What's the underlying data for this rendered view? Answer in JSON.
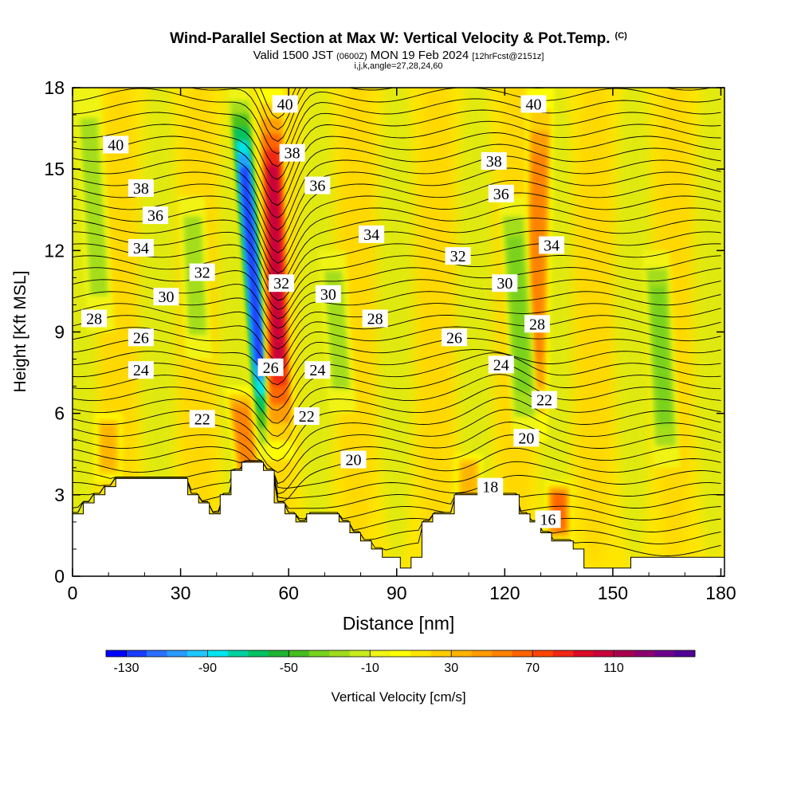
{
  "title": {
    "main": "Wind-Parallel Section at Max W: Vertical Velocity & Pot.Temp.",
    "copyright": "(C)",
    "valid_a": "Valid 1500 JST",
    "valid_b": "(0600Z)",
    "valid_c": "MON 19 Feb 2024",
    "valid_d": "[12hrFcst@2151z]",
    "params": "i,j,k,angle=27,28,24,60"
  },
  "chart_data": {
    "type": "heatmap",
    "xlabel": "Distance [nm]",
    "ylabel": "Height [Kft MSL]",
    "xlim": [
      0,
      181
    ],
    "ylim": [
      0,
      18
    ],
    "x_ticks": [
      0,
      30,
      60,
      90,
      120,
      150,
      180
    ],
    "y_ticks": [
      0,
      3,
      6,
      9,
      12,
      15,
      18
    ],
    "colorbar": {
      "label": "Vertical Velocity [cm/s]",
      "min": -140,
      "max": 150,
      "step": 10,
      "tick_labels": [
        -130,
        -90,
        -50,
        -10,
        30,
        70,
        110
      ],
      "colors": [
        "#0000ff",
        "#1a3cff",
        "#2870ff",
        "#289bff",
        "#1ec8ff",
        "#00e6f0",
        "#00d2a0",
        "#00c364",
        "#1eb432",
        "#46be1e",
        "#78d21e",
        "#a0dc1e",
        "#c8ec1e",
        "#f0f514",
        "#ffff00",
        "#ffe600",
        "#ffcd00",
        "#ffb400",
        "#ff9b00",
        "#ff8200",
        "#ff6400",
        "#ff4600",
        "#f02814",
        "#dc0a28",
        "#c8003c",
        "#aa0050",
        "#8c006e",
        "#6e008c",
        "#500096"
      ]
    },
    "theta_contour_labels": [
      {
        "x": 12,
        "y": 15.9,
        "value": "40"
      },
      {
        "x": 19,
        "y": 14.3,
        "value": "38"
      },
      {
        "x": 23,
        "y": 13.3,
        "value": "36"
      },
      {
        "x": 19,
        "y": 12.1,
        "value": "34"
      },
      {
        "x": 36,
        "y": 11.2,
        "value": "32"
      },
      {
        "x": 26,
        "y": 10.3,
        "value": "30"
      },
      {
        "x": 6,
        "y": 9.5,
        "value": "28"
      },
      {
        "x": 19,
        "y": 8.8,
        "value": "26"
      },
      {
        "x": 19,
        "y": 7.6,
        "value": "24"
      },
      {
        "x": 36,
        "y": 5.8,
        "value": "22"
      },
      {
        "x": 59,
        "y": 17.4,
        "value": "40"
      },
      {
        "x": 61,
        "y": 15.6,
        "value": "38"
      },
      {
        "x": 68,
        "y": 14.4,
        "value": "36"
      },
      {
        "x": 83,
        "y": 12.6,
        "value": "34"
      },
      {
        "x": 58,
        "y": 10.8,
        "value": "32"
      },
      {
        "x": 71,
        "y": 10.4,
        "value": "30"
      },
      {
        "x": 84,
        "y": 9.5,
        "value": "28"
      },
      {
        "x": 55,
        "y": 7.7,
        "value": "26"
      },
      {
        "x": 68,
        "y": 7.6,
        "value": "24"
      },
      {
        "x": 65,
        "y": 5.9,
        "value": "22"
      },
      {
        "x": 78,
        "y": 4.3,
        "value": "20"
      },
      {
        "x": 117,
        "y": 15.3,
        "value": "38"
      },
      {
        "x": 119,
        "y": 14.1,
        "value": "36"
      },
      {
        "x": 133,
        "y": 12.2,
        "value": "34"
      },
      {
        "x": 107,
        "y": 11.8,
        "value": "32"
      },
      {
        "x": 120,
        "y": 10.8,
        "value": "30"
      },
      {
        "x": 129,
        "y": 9.3,
        "value": "28"
      },
      {
        "x": 106,
        "y": 8.8,
        "value": "26"
      },
      {
        "x": 119,
        "y": 7.8,
        "value": "24"
      },
      {
        "x": 131,
        "y": 6.5,
        "value": "22"
      },
      {
        "x": 126,
        "y": 5.1,
        "value": "20"
      },
      {
        "x": 116,
        "y": 3.3,
        "value": "18"
      },
      {
        "x": 132,
        "y": 2.1,
        "value": "16"
      },
      {
        "x": 128,
        "y": 17.4,
        "value": "40"
      }
    ],
    "velocity_features": [
      {
        "name": "downdraft",
        "x_bottom": 54,
        "x_top": 46,
        "y_bottom": 4.3,
        "y_top": 18,
        "min_w": -130
      },
      {
        "name": "updraft",
        "x_bottom": 58,
        "x_top": 55,
        "y_bottom": 4.3,
        "y_top": 18,
        "max_w": 110
      },
      {
        "name": "updraft",
        "x_bottom": 50,
        "x_top": 46,
        "y_bottom": 2.5,
        "y_top": 7,
        "max_w": 60
      },
      {
        "name": "updraft",
        "x_bottom": 128,
        "x_top": 130,
        "y_bottom": 5,
        "y_top": 18,
        "max_w": 60
      },
      {
        "name": "updraft",
        "x_bottom": 135,
        "x_top": 135,
        "y_bottom": 1.2,
        "y_top": 3.5,
        "max_w": 70
      },
      {
        "name": "updraft",
        "x_bottom": 110,
        "x_top": 110,
        "y_bottom": 2.5,
        "y_top": 4.5,
        "max_w": 40
      },
      {
        "name": "updraft",
        "x_bottom": 10,
        "x_top": 10,
        "y_bottom": 3.5,
        "y_top": 6,
        "max_w": 40
      },
      {
        "name": "downdraft",
        "x_bottom": 165,
        "x_top": 162,
        "y_bottom": 4,
        "y_top": 12,
        "min_w": -40
      },
      {
        "name": "downdraft",
        "x_bottom": 126,
        "x_top": 122,
        "y_bottom": 5,
        "y_top": 14,
        "min_w": -35
      },
      {
        "name": "downdraft",
        "x_bottom": 8,
        "x_top": 4,
        "y_bottom": 9,
        "y_top": 18,
        "min_w": -30
      },
      {
        "name": "downdraft",
        "x_bottom": 75,
        "x_top": 72,
        "y_bottom": 6,
        "y_top": 12,
        "min_w": -25
      },
      {
        "name": "downdraft",
        "x_bottom": 35,
        "x_top": 33,
        "y_bottom": 8,
        "y_top": 14,
        "min_w": -25
      }
    ],
    "terrain": [
      [
        0,
        2.3
      ],
      [
        3,
        2.3
      ],
      [
        3,
        2.7
      ],
      [
        6,
        2.7
      ],
      [
        6,
        3.0
      ],
      [
        9,
        3.0
      ],
      [
        9,
        3.3
      ],
      [
        12,
        3.3
      ],
      [
        12,
        3.6
      ],
      [
        32,
        3.6
      ],
      [
        32,
        3.0
      ],
      [
        35,
        3.0
      ],
      [
        35,
        2.7
      ],
      [
        38,
        2.7
      ],
      [
        38,
        2.3
      ],
      [
        41,
        2.3
      ],
      [
        41,
        3.0
      ],
      [
        44,
        3.0
      ],
      [
        44,
        3.9
      ],
      [
        47,
        3.9
      ],
      [
        47,
        4.2
      ],
      [
        53,
        4.2
      ],
      [
        53,
        3.9
      ],
      [
        56,
        3.9
      ],
      [
        56,
        2.7
      ],
      [
        59,
        2.7
      ],
      [
        59,
        2.3
      ],
      [
        62,
        2.3
      ],
      [
        62,
        2.0
      ],
      [
        65,
        2.0
      ],
      [
        65,
        2.3
      ],
      [
        74,
        2.3
      ],
      [
        74,
        2.0
      ],
      [
        77,
        2.0
      ],
      [
        77,
        1.6
      ],
      [
        80,
        1.6
      ],
      [
        80,
        1.3
      ],
      [
        83,
        1.3
      ],
      [
        83,
        1.0
      ],
      [
        86,
        1.0
      ],
      [
        86,
        0.7
      ],
      [
        91,
        0.7
      ],
      [
        91,
        0.3
      ],
      [
        94,
        0.3
      ],
      [
        94,
        0.7
      ],
      [
        97,
        0.7
      ],
      [
        97,
        2.0
      ],
      [
        100,
        2.0
      ],
      [
        100,
        2.3
      ],
      [
        106,
        2.3
      ],
      [
        106,
        3.0
      ],
      [
        124,
        3.0
      ],
      [
        124,
        2.3
      ],
      [
        127,
        2.3
      ],
      [
        127,
        2.0
      ],
      [
        130,
        2.0
      ],
      [
        130,
        1.6
      ],
      [
        133,
        1.6
      ],
      [
        133,
        1.3
      ],
      [
        139,
        1.3
      ],
      [
        139,
        1.0
      ],
      [
        142,
        1.0
      ],
      [
        142,
        0.3
      ],
      [
        155,
        0.3
      ],
      [
        155,
        0.7
      ],
      [
        181,
        0.7
      ]
    ]
  }
}
